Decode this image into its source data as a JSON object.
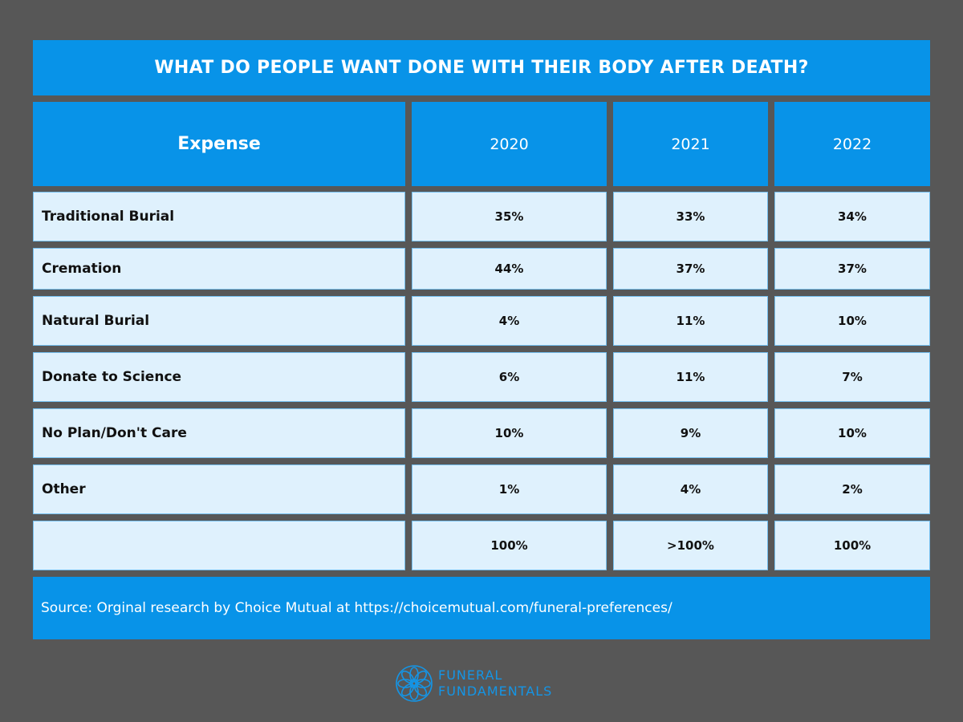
{
  "title": "WHAT DO PEOPLE WANT DONE WITH THEIR BODY AFTER DEATH?",
  "chart_data": {
    "type": "table",
    "columns": [
      "Expense",
      "2020",
      "2021",
      "2022"
    ],
    "rows": [
      [
        "Traditional Burial",
        "35%",
        "33%",
        "34%"
      ],
      [
        "Cremation",
        "44%",
        "37%",
        "37%"
      ],
      [
        "Natural Burial",
        "4%",
        "11%",
        "10%"
      ],
      [
        "Donate to Science",
        "6%",
        "11%",
        "7%"
      ],
      [
        "No Plan/Don't Care",
        "10%",
        "9%",
        "10%"
      ],
      [
        "Other",
        "1%",
        "4%",
        "2%"
      ],
      [
        "",
        "100%",
        ">100%",
        "100%"
      ]
    ]
  },
  "source": "Source: Orginal research by Choice Mutual at https://choicemutual.com/funeral-preferences/",
  "logo": {
    "line1": "FUNERAL",
    "line2": "FUNDAMENTALS",
    "icon": "lotus-icon"
  },
  "colors": {
    "background": "#575757",
    "accent": "#0893e8",
    "cell": "#dff1fd",
    "logo": "#1495e6"
  }
}
